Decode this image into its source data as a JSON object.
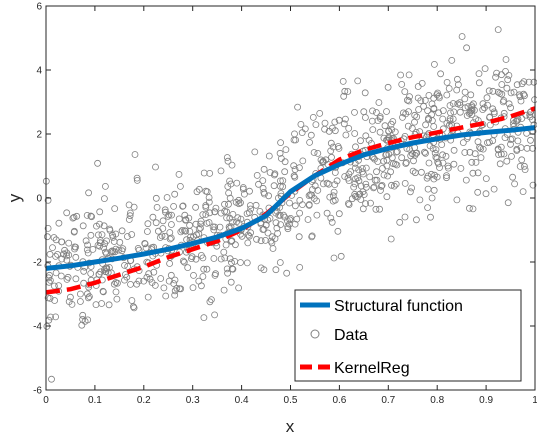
{
  "chart_data": {
    "type": "scatter",
    "title": "",
    "xlabel": "x",
    "ylabel": "y",
    "xlim": [
      0,
      1
    ],
    "ylim": [
      -6,
      6
    ],
    "xticks": [
      0,
      0.1,
      0.2,
      0.3,
      0.4,
      0.5,
      0.6,
      0.7,
      0.8,
      0.9,
      1
    ],
    "yticks": [
      -6,
      -4,
      -2,
      0,
      2,
      4,
      6
    ],
    "xtick_labels": [
      "0",
      "0.1",
      "0.2",
      "0.3",
      "0.4",
      "0.5",
      "0.6",
      "0.7",
      "0.8",
      "0.9",
      "1"
    ],
    "ytick_labels": [
      "-6",
      "-4",
      "-2",
      "0",
      "2",
      "4",
      "6"
    ],
    "grid": false,
    "legend_position": "bottom-right",
    "series": [
      {
        "name": "Structural function",
        "type": "line",
        "color": "#0072BD",
        "x": [
          0,
          0.05,
          0.1,
          0.15,
          0.2,
          0.25,
          0.3,
          0.35,
          0.4,
          0.45,
          0.5,
          0.55,
          0.6,
          0.65,
          0.7,
          0.75,
          0.8,
          0.85,
          0.9,
          0.95,
          1
        ],
        "y": [
          -2.2,
          -2.12,
          -2.0,
          -1.88,
          -1.75,
          -1.6,
          -1.42,
          -1.22,
          -0.95,
          -0.55,
          0.2,
          0.7,
          1.05,
          1.35,
          1.55,
          1.72,
          1.85,
          1.97,
          2.05,
          2.12,
          2.2
        ]
      },
      {
        "name": "Data",
        "type": "scatter",
        "color": "#808080",
        "marker": "open-circle",
        "description_count": 1000
      },
      {
        "name": "KernelReg",
        "type": "line",
        "color": "#FF0000",
        "style": "dashed",
        "x": [
          0,
          0.05,
          0.1,
          0.15,
          0.2,
          0.25,
          0.3,
          0.35,
          0.4,
          0.45,
          0.5,
          0.55,
          0.6,
          0.65,
          0.7,
          0.75,
          0.8,
          0.85,
          0.9,
          0.95,
          1
        ],
        "y": [
          -2.95,
          -2.85,
          -2.65,
          -2.4,
          -2.15,
          -1.85,
          -1.6,
          -1.35,
          -1.0,
          -0.5,
          0.15,
          0.7,
          1.2,
          1.5,
          1.72,
          1.9,
          2.05,
          2.2,
          2.35,
          2.55,
          2.8
        ]
      }
    ]
  }
}
